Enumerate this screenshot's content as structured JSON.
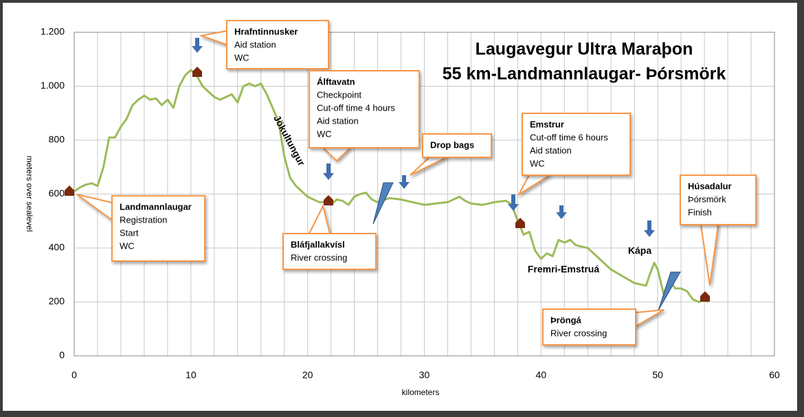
{
  "chart_data": {
    "type": "line",
    "title": [
      "Laugavegur Ultra Maraþon",
      "55 km-Landmannlaugar- Þórsmörk"
    ],
    "x_label": "kilometers",
    "y_label": "meters over sealevel",
    "xlim": [
      0,
      60
    ],
    "xticks": [
      0,
      10,
      20,
      30,
      40,
      50,
      60
    ],
    "xminorticks": [
      2,
      4,
      6,
      8,
      12,
      14,
      16,
      18,
      22,
      24,
      26,
      28,
      32,
      34,
      36,
      38,
      42,
      44,
      46,
      48,
      52,
      54,
      56,
      58
    ],
    "ylim": [
      0,
      1200
    ],
    "yticks": [
      0,
      200,
      400,
      600,
      800,
      {
        "value": 1000,
        "label": "1.000"
      },
      {
        "value": 1200,
        "label": "1.200"
      }
    ],
    "grid": true,
    "series": [
      {
        "color": "#9bbb59",
        "x": [
          0,
          0.5,
          1,
          1.5,
          2,
          2.5,
          3,
          3.5,
          4,
          4.5,
          5,
          5.5,
          6,
          6.5,
          7,
          7.5,
          8,
          8.5,
          9,
          9.5,
          10,
          10.5,
          11,
          11.5,
          12,
          12.5,
          13,
          13.5,
          14,
          14.5,
          15,
          15.5,
          16,
          16.5,
          17,
          17.5,
          18,
          18.5,
          19,
          19.5,
          20,
          21,
          21.5,
          22,
          22.5,
          23,
          23.5,
          24,
          24.5,
          25,
          25.5,
          26,
          27,
          28,
          29,
          30,
          31,
          32,
          33,
          33.5,
          34,
          35,
          36,
          37,
          37.5,
          38,
          38.5,
          39,
          39.5,
          40,
          40.5,
          41,
          41.5,
          42,
          42.5,
          43,
          44,
          45,
          46,
          47,
          48,
          49,
          49.3,
          49.7,
          50,
          50.5,
          51,
          51.5,
          52,
          52.5,
          53,
          53.5,
          54,
          54.3
        ],
        "values": [
          610,
          625,
          635,
          640,
          630,
          700,
          810,
          810,
          850,
          880,
          930,
          950,
          965,
          950,
          955,
          930,
          950,
          920,
          1000,
          1040,
          1060,
          1040,
          1000,
          980,
          960,
          950,
          960,
          970,
          940,
          1000,
          1010,
          1000,
          1010,
          970,
          920,
          870,
          740,
          660,
          630,
          610,
          590,
          570,
          570,
          560,
          580,
          575,
          560,
          590,
          600,
          605,
          580,
          570,
          585,
          580,
          570,
          560,
          565,
          570,
          590,
          575,
          565,
          560,
          570,
          575,
          560,
          500,
          450,
          460,
          390,
          360,
          380,
          370,
          430,
          420,
          430,
          410,
          400,
          360,
          320,
          295,
          270,
          260,
          300,
          345,
          320,
          230,
          280,
          250,
          250,
          240,
          210,
          200,
          205,
          200
        ]
      }
    ],
    "annotations": [
      {
        "title": "Hrafntinnusker",
        "lines": [
          "Aid station",
          "WC"
        ]
      },
      {
        "title": "Álftavatn",
        "lines": [
          "Checkpoint",
          "Cut-off time  4 hours",
          "Aid station",
          "WC"
        ]
      },
      {
        "title": "Drop bags",
        "lines": []
      },
      {
        "title": "Emstrur",
        "lines": [
          "Cut-off time 6 hours",
          "Aid station",
          "WC"
        ]
      },
      {
        "title": "Húsadalur",
        "lines": [
          "Þórsmörk",
          "Finish"
        ]
      },
      {
        "title": "Landmannlaugar",
        "lines": [
          "Registration",
          "Start",
          "WC"
        ]
      },
      {
        "title": "Bláfjallakvísl",
        "lines": [
          "River crossing"
        ]
      },
      {
        "title": "Þröngá",
        "lines": [
          "River crossing"
        ]
      }
    ],
    "labels": [
      "Jökultungur",
      "Fremri-Emstruá",
      "Kápa"
    ]
  }
}
